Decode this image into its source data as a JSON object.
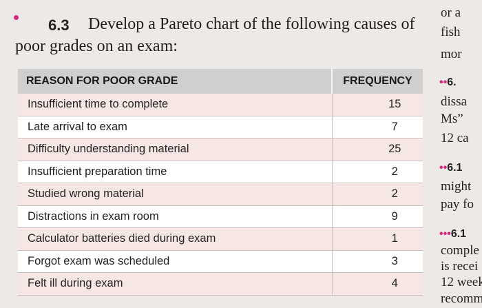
{
  "problem": {
    "number": "6.3",
    "line1": "Develop a Pareto chart of the following causes of",
    "line2": "poor grades on an exam:"
  },
  "table": {
    "headers": [
      "REASON FOR POOR GRADE",
      "FREQUENCY"
    ],
    "rows": [
      {
        "reason": "Insufficient time to complete",
        "frequency": "15"
      },
      {
        "reason": "Late arrival to exam",
        "frequency": "7"
      },
      {
        "reason": "Difficulty understanding material",
        "frequency": "25"
      },
      {
        "reason": "Insufficient preparation time",
        "frequency": "2"
      },
      {
        "reason": "Studied wrong material",
        "frequency": "2"
      },
      {
        "reason": "Distractions in exam room",
        "frequency": "9"
      },
      {
        "reason": "Calculator batteries died during exam",
        "frequency": "1"
      },
      {
        "reason": "Forgot exam was scheduled",
        "frequency": "3"
      },
      {
        "reason": "Felt ill during exam",
        "frequency": "4"
      }
    ]
  },
  "side_column": {
    "lines": [
      {
        "text": "or a",
        "style": "serif"
      },
      {
        "text": "fish",
        "style": "serif"
      },
      {
        "text": "mor",
        "style": "serif"
      },
      {
        "text": "6.",
        "style": "bold",
        "dots": "••"
      },
      {
        "text": "dissa",
        "style": "serif"
      },
      {
        "text": "Ms”",
        "style": "serif"
      },
      {
        "text": "12 ca",
        "style": "serif"
      },
      {
        "text": "6.1",
        "style": "bold",
        "dots": "••"
      },
      {
        "text": "might",
        "style": "serif"
      },
      {
        "text": "pay fo",
        "style": "serif"
      },
      {
        "text": "6.1",
        "style": "bold",
        "dots": "•••"
      },
      {
        "text": "comple",
        "style": "serif"
      },
      {
        "text": "is recei",
        "style": "serif"
      },
      {
        "text": "12 week",
        "style": "serif"
      },
      {
        "text": "recomm",
        "style": "serif"
      }
    ]
  },
  "colors": {
    "accent": "#d9267d",
    "header_bg": "#cfcfcf",
    "row_tint": "#f7e7e4",
    "page_bg": "#ece9e6"
  }
}
